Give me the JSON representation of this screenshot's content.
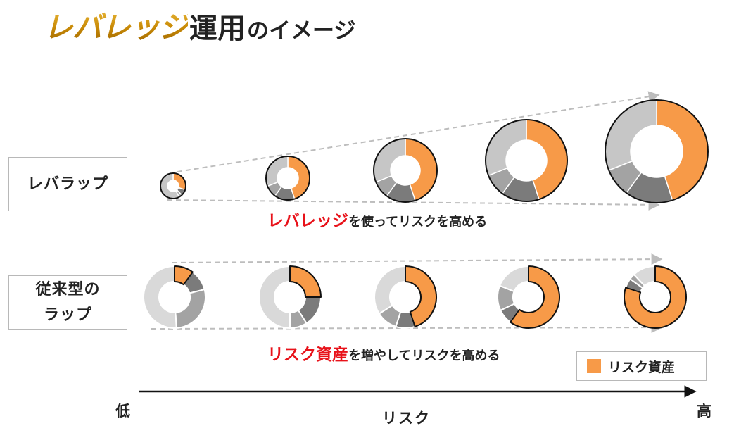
{
  "title": {
    "highlight": "レバレッジ",
    "main": "運用",
    "suffix": "のイメージ"
  },
  "rows": [
    {
      "label": "レバラップ"
    },
    {
      "label_lines": [
        "従来型の",
        "ラップ"
      ]
    }
  ],
  "captions": {
    "leverage": {
      "em": "レバレッジ",
      "rest": "を使ってリスクを高める"
    },
    "traditional": {
      "em": "リスク資産",
      "rest": "を増やしてリスクを高める"
    }
  },
  "legend": {
    "label": "リスク資産",
    "color": "#f79a48"
  },
  "axis": {
    "low": "低",
    "high": "高",
    "name": "リスク"
  },
  "colors": {
    "orange": "#f79a48",
    "gray_dark": "#7b7b7b",
    "gray_mid": "#a3a3a3",
    "gray_light": "#c6c6c6",
    "gray_pale": "#d9d9d9",
    "arrow": "#bdbdbd"
  },
  "chart_data": [
    {
      "type": "donut",
      "row": "レバラップ",
      "donuts": [
        {
          "risk_asset_fraction": 0.3,
          "gray_fractions": [
            0.08,
            0.04,
            0.58
          ],
          "relative_size": 1.0
        },
        {
          "risk_asset_fraction": 0.45,
          "gray_fractions": [
            0.15,
            0.09,
            0.31
          ],
          "relative_size": 1.5
        },
        {
          "risk_asset_fraction": 0.45,
          "gray_fractions": [
            0.15,
            0.09,
            0.31
          ],
          "relative_size": 2.2
        },
        {
          "risk_asset_fraction": 0.45,
          "gray_fractions": [
            0.15,
            0.09,
            0.31
          ],
          "relative_size": 2.9
        },
        {
          "risk_asset_fraction": 0.45,
          "gray_fractions": [
            0.15,
            0.09,
            0.31
          ],
          "relative_size": 3.6
        }
      ]
    },
    {
      "type": "donut",
      "row": "従来型のラップ",
      "donuts": [
        {
          "risk_asset_fraction": 0.1,
          "gray_fractions": [
            0.11,
            0.28,
            0.51
          ]
        },
        {
          "risk_asset_fraction": 0.25,
          "gray_fractions": [
            0.16,
            0.09,
            0.5
          ]
        },
        {
          "risk_asset_fraction": 0.45,
          "gray_fractions": [
            0.1,
            0.11,
            0.34
          ]
        },
        {
          "risk_asset_fraction": 0.6,
          "gray_fractions": [
            0.08,
            0.13,
            0.19
          ]
        },
        {
          "risk_asset_fraction": 0.8,
          "gray_fractions": [
            0.05,
            0.03,
            0.12
          ]
        }
      ]
    }
  ]
}
